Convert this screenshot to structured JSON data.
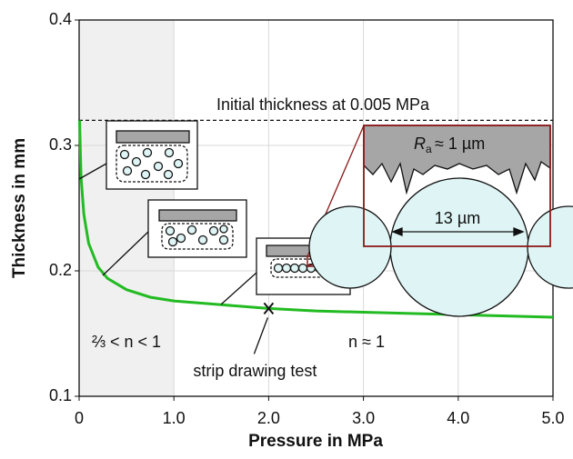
{
  "chart_data": {
    "type": "line",
    "x_label": "Pressure in MPa",
    "y_label": "Thickness in mm",
    "x": [
      0.005,
      0.02,
      0.05,
      0.1,
      0.2,
      0.3,
      0.5,
      0.75,
      1.0,
      1.5,
      2.0,
      2.5,
      3.0,
      3.5,
      4.0,
      4.5,
      5.0
    ],
    "values": [
      0.32,
      0.275,
      0.245,
      0.222,
      0.203,
      0.194,
      0.185,
      0.179,
      0.176,
      0.173,
      0.17,
      0.168,
      0.167,
      0.166,
      0.165,
      0.164,
      0.163
    ],
    "color": "#22bb22",
    "xlim": [
      0,
      5
    ],
    "ylim": [
      0.1,
      0.4
    ],
    "xticks": [
      0,
      {
        "value": 1,
        "label": "1.0"
      },
      {
        "value": 2,
        "label": "2.0"
      },
      {
        "value": 3,
        "label": "3.0"
      },
      {
        "value": 4,
        "label": "4.0"
      },
      {
        "value": 5,
        "label": "5.0"
      }
    ],
    "yticks": [
      0.1,
      0.2,
      0.3,
      0.4
    ],
    "grid": true,
    "shaded_region": [
      0,
      1
    ],
    "reference_line": {
      "value": 0.32,
      "label": "Initial thickness at 0.005 MPa"
    },
    "marker": {
      "x": 2,
      "y": 0.17,
      "label": "strip drawing test"
    },
    "region_labels": [
      "⅔ < n < 1",
      "n ≈ 1"
    ],
    "inset": {
      "ra_symbol": "R",
      "ra_subscript": "a",
      "ra_text": "≈ 1 µm",
      "width_label": "13 µm"
    }
  }
}
